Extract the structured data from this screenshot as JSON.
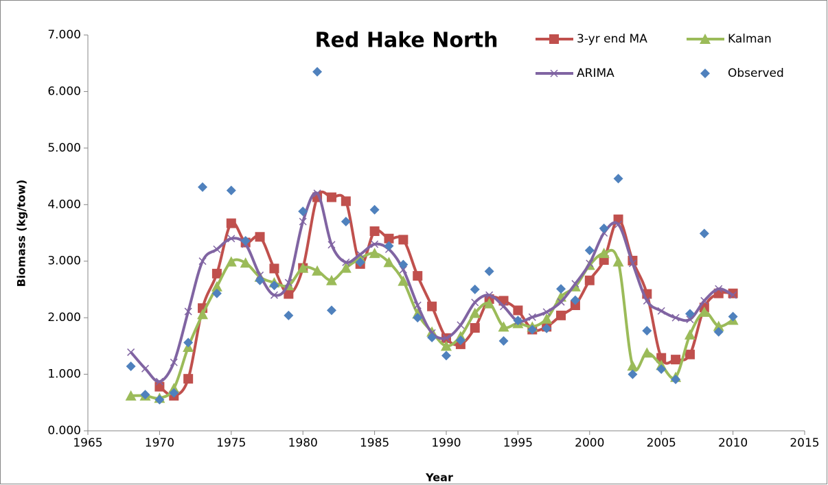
{
  "chart_data": {
    "type": "line",
    "title": "Red Hake North",
    "x_label": "Year",
    "y_label": "Biomass (kg/tow)",
    "x": [
      1968,
      1969,
      1970,
      1971,
      1972,
      1973,
      1974,
      1975,
      1976,
      1977,
      1978,
      1979,
      1980,
      1981,
      1982,
      1983,
      1984,
      1985,
      1986,
      1987,
      1988,
      1989,
      1990,
      1991,
      1992,
      1993,
      1994,
      1995,
      1996,
      1997,
      1998,
      1999,
      2000,
      2001,
      2002,
      2003,
      2004,
      2005,
      2006,
      2007,
      2008,
      2009,
      2010
    ],
    "series": [
      {
        "name": "3-yr end MA",
        "color": "#c0504d",
        "marker": "square",
        "line": true,
        "values": [
          null,
          null,
          0.78,
          0.62,
          0.92,
          2.17,
          2.78,
          3.67,
          3.33,
          3.43,
          2.87,
          2.42,
          2.88,
          4.13,
          4.13,
          4.06,
          2.95,
          3.53,
          3.4,
          3.38,
          2.74,
          2.2,
          1.64,
          1.53,
          1.82,
          2.33,
          2.3,
          2.13,
          1.79,
          1.84,
          2.04,
          2.22,
          2.66,
          3.02,
          3.74,
          3.01,
          2.42,
          1.29,
          1.26,
          1.35,
          2.18,
          2.43,
          2.43
        ]
      },
      {
        "name": "Kalman",
        "color": "#9bbb59",
        "marker": "triangle",
        "line": true,
        "values": [
          0.62,
          0.62,
          0.58,
          0.75,
          1.48,
          2.06,
          2.55,
          2.99,
          2.97,
          2.72,
          2.62,
          2.57,
          2.88,
          2.83,
          2.66,
          2.88,
          3.05,
          3.14,
          2.98,
          2.65,
          2.07,
          1.75,
          1.5,
          1.67,
          2.08,
          2.25,
          1.84,
          1.9,
          1.84,
          1.98,
          2.37,
          2.55,
          2.93,
          3.14,
          2.99,
          1.15,
          1.38,
          1.16,
          0.95,
          1.7,
          2.1,
          1.85,
          1.96
        ]
      },
      {
        "name": "ARIMA",
        "color": "#8064a2",
        "marker": "x",
        "line": true,
        "values": [
          1.39,
          1.1,
          0.87,
          1.21,
          2.11,
          3.0,
          3.21,
          3.4,
          3.3,
          2.75,
          2.4,
          2.62,
          3.7,
          4.2,
          3.29,
          2.98,
          3.12,
          3.3,
          3.21,
          2.85,
          2.22,
          1.73,
          1.64,
          1.87,
          2.27,
          2.4,
          2.2,
          1.94,
          2.01,
          2.1,
          2.28,
          2.6,
          2.96,
          3.5,
          3.65,
          2.96,
          2.3,
          2.12,
          2.0,
          1.97,
          2.3,
          2.51,
          2.4
        ]
      },
      {
        "name": "Observed",
        "color": "#4f81bd",
        "marker": "diamond",
        "line": false,
        "values": [
          1.14,
          0.64,
          0.55,
          0.67,
          1.56,
          4.31,
          2.43,
          4.25,
          3.36,
          2.66,
          2.57,
          2.04,
          3.88,
          6.35,
          2.13,
          3.7,
          2.98,
          3.91,
          3.27,
          2.94,
          2.0,
          1.65,
          1.33,
          1.6,
          2.5,
          2.82,
          1.59,
          1.95,
          1.79,
          1.81,
          2.51,
          2.31,
          3.19,
          3.58,
          4.46,
          1.0,
          1.77,
          1.09,
          0.91,
          2.07,
          3.49,
          1.75,
          2.02
        ]
      }
    ],
    "xlim": [
      1965,
      2015
    ],
    "xticks": [
      1965,
      1970,
      1975,
      1980,
      1985,
      1990,
      1995,
      2000,
      2005,
      2010,
      2015
    ],
    "ylim": [
      0,
      7
    ],
    "yticks": [
      {
        "value": 0,
        "label": "0.000"
      },
      {
        "value": 1,
        "label": "1.000"
      },
      {
        "value": 2,
        "label": "2.000"
      },
      {
        "value": 3,
        "label": "3.000"
      },
      {
        "value": 4,
        "label": "4.000"
      },
      {
        "value": 5,
        "label": "5.000"
      },
      {
        "value": 6,
        "label": "6.000"
      },
      {
        "value": 7,
        "label": "7.000"
      }
    ],
    "grid": false
  }
}
